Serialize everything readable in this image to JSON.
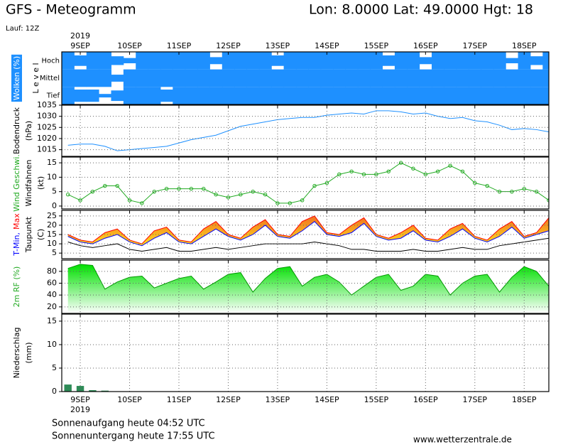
{
  "header": {
    "title": "GFS - Meteogramm",
    "location": "Lon: 8.0000 Lat: 49.0000 Hgt: 18",
    "run": "Lauf: 12Z"
  },
  "footer": {
    "sunrise": "Sonnenaufgang heute 04:52 UTC",
    "sunset": "Sonnenuntergang heute 17:55 UTC",
    "source": "www.wetterzentrale.de"
  },
  "time": {
    "year": "2019",
    "xlim": [
      -0.375,
      9.5
    ],
    "xticks": [
      {
        "value": 0,
        "label": "9SEP"
      },
      {
        "value": 1,
        "label": "10SEP"
      },
      {
        "value": 2,
        "label": "11SEP"
      },
      {
        "value": 3,
        "label": "12SEP"
      },
      {
        "value": 4,
        "label": "13SEP"
      },
      {
        "value": 5,
        "label": "14SEP"
      },
      {
        "value": 6,
        "label": "15SEP"
      },
      {
        "value": 7,
        "label": "16SEP"
      },
      {
        "value": 8,
        "label": "17SEP"
      },
      {
        "value": 9,
        "label": "18SEP"
      }
    ],
    "x": [
      -0.25,
      0,
      0.25,
      0.5,
      0.75,
      1,
      1.25,
      1.5,
      1.75,
      2,
      2.25,
      2.5,
      2.75,
      3,
      3.25,
      3.5,
      3.75,
      4,
      4.25,
      4.5,
      4.75,
      5,
      5.25,
      5.5,
      5.75,
      6,
      6.25,
      6.5,
      6.75,
      7,
      7.25,
      7.5,
      7.75,
      8,
      8.25,
      8.5,
      8.75,
      9,
      9.25,
      9.5
    ]
  },
  "chart_data": [
    {
      "type": "clouds",
      "ylabel": [
        [
          {
            "text": "Wolken (%)",
            "color": "#ffffff",
            "background": "#1e90ff"
          }
        ],
        [
          {
            "text": "L e v e l",
            "color": "#000000"
          }
        ]
      ],
      "series": [
        {
          "name": "Hoch",
          "color": "#1e90ff",
          "values": [
            100,
            60,
            100,
            100,
            50,
            30,
            100,
            100,
            100,
            100,
            100,
            100,
            40,
            100,
            100,
            100,
            100,
            60,
            100,
            100,
            100,
            100,
            100,
            100,
            100,
            100,
            60,
            100,
            100,
            40,
            100,
            100,
            100,
            100,
            100,
            100,
            30,
            100,
            50,
            100
          ]
        },
        {
          "name": "Mittel",
          "color": "#1e90ff",
          "values": [
            100,
            100,
            100,
            100,
            40,
            100,
            100,
            100,
            100,
            100,
            100,
            100,
            100,
            100,
            100,
            100,
            100,
            100,
            100,
            100,
            100,
            100,
            100,
            100,
            100,
            100,
            100,
            100,
            100,
            100,
            100,
            100,
            100,
            100,
            100,
            100,
            100,
            100,
            100,
            100
          ]
        },
        {
          "name": "Tief",
          "color": "#1e90ff",
          "values": [
            100,
            70,
            70,
            20,
            60,
            100,
            100,
            100,
            70,
            100,
            100,
            100,
            100,
            100,
            100,
            100,
            100,
            100,
            100,
            100,
            100,
            100,
            100,
            100,
            100,
            100,
            100,
            100,
            100,
            100,
            100,
            100,
            100,
            100,
            100,
            100,
            100,
            100,
            100,
            100
          ]
        }
      ]
    },
    {
      "type": "line",
      "ylabel": [
        [
          {
            "text": "Bodendruck",
            "color": "#000000"
          }
        ],
        [
          {
            "text": "(hPa)",
            "color": "#000000"
          }
        ]
      ],
      "ylim": [
        1012,
        1035
      ],
      "yticks": [
        1015,
        1020,
        1025,
        1030,
        1035
      ],
      "grid": true,
      "series": [
        {
          "color": "#1e90ff",
          "values": [
            1017,
            1017.5,
            1017.5,
            1016.5,
            1014.5,
            1015,
            1015.5,
            1016,
            1016.5,
            1018,
            1019.5,
            1020.5,
            1021.5,
            1023.5,
            1025.5,
            1026.5,
            1027.5,
            1028.5,
            1029,
            1029.5,
            1029.5,
            1030.5,
            1031,
            1031.5,
            1031,
            1032.5,
            1032.5,
            1032,
            1031,
            1031.5,
            1030,
            1029,
            1029.5,
            1028,
            1027.5,
            1026,
            1024,
            1024.5,
            1024,
            1023
          ]
        }
      ]
    },
    {
      "type": "line",
      "markers": true,
      "ylabel": [
        [
          {
            "text": "Wind Geschwi.",
            "color": "#22aa22"
          }
        ],
        [
          {
            "text": "Windfahnen",
            "color": "#000000"
          }
        ],
        [
          {
            "text": "(kt)",
            "color": "#000000"
          }
        ]
      ],
      "ylim": [
        -1,
        17
      ],
      "yticks": [
        0,
        5,
        10,
        15
      ],
      "grid": true,
      "series": [
        {
          "color": "#22aa22",
          "values": [
            4,
            2,
            5,
            7,
            7,
            2,
            1,
            5,
            6,
            6,
            6,
            6,
            4,
            3,
            4,
            5,
            4,
            1,
            1,
            2,
            7,
            8,
            11,
            12,
            11,
            11,
            12,
            15,
            13,
            11,
            12,
            14,
            12,
            8,
            7,
            5,
            5,
            6,
            5,
            2
          ]
        }
      ]
    },
    {
      "type": "band",
      "ylabel": [
        [
          {
            "text": "T-Min,",
            "color": "#0000ff"
          },
          {
            "text": "Max",
            "color": "#ff0000"
          }
        ],
        [
          {
            "text": "Taupunkt",
            "color": "#000000"
          }
        ],
        [
          {
            "text": "(C)",
            "color": "#000000"
          }
        ]
      ],
      "ylim": [
        2,
        28
      ],
      "yticks": [
        5,
        10,
        15,
        20,
        25
      ],
      "grid": true,
      "fill_between": [
        0,
        1
      ],
      "fill_colors": [
        "#f07020",
        "#ffe020"
      ],
      "series": [
        {
          "color": "#ff0000",
          "values": [
            15,
            12,
            11,
            16,
            18,
            12,
            10,
            17,
            19,
            12,
            11,
            18,
            22,
            15,
            13,
            19,
            23,
            15,
            14,
            22,
            25,
            16,
            15,
            20,
            24,
            15,
            13,
            16,
            20,
            13,
            12,
            18,
            21,
            14,
            12,
            18,
            22,
            14,
            16,
            24
          ]
        },
        {
          "color": "#0000ff",
          "values": [
            14,
            11,
            10,
            13,
            15,
            11,
            9,
            13,
            16,
            11,
            10,
            14,
            18,
            14,
            12,
            15,
            20,
            14,
            13,
            17,
            22,
            15,
            14,
            16,
            21,
            14,
            12,
            13,
            17,
            12,
            11,
            14,
            18,
            13,
            11,
            14,
            19,
            13,
            15,
            17
          ]
        },
        {
          "color": "#000000",
          "values": [
            11,
            9,
            8,
            9,
            10,
            7,
            6,
            7,
            8,
            6,
            6,
            7,
            8,
            7,
            8,
            9,
            10,
            10,
            10,
            10,
            11,
            10,
            9,
            7,
            7,
            6,
            6,
            6,
            7,
            6,
            6,
            7,
            8,
            7,
            7,
            9,
            10,
            11,
            12,
            13
          ]
        }
      ]
    },
    {
      "type": "area",
      "ylabel": [
        [
          {
            "text": "2m RF (%)",
            "color": "#22aa22"
          }
        ]
      ],
      "ylim": [
        9,
        99
      ],
      "yticks": [
        20,
        40,
        60,
        80
      ],
      "grid": true,
      "fill_colors": [
        "#00e000",
        "#ffffff"
      ],
      "series": [
        {
          "color": "#009900",
          "values": [
            85,
            92,
            90,
            50,
            62,
            70,
            72,
            52,
            60,
            68,
            72,
            50,
            62,
            75,
            78,
            45,
            68,
            85,
            88,
            55,
            70,
            75,
            62,
            40,
            55,
            70,
            75,
            48,
            55,
            75,
            72,
            40,
            60,
            72,
            75,
            45,
            70,
            88,
            80,
            55
          ]
        }
      ]
    },
    {
      "type": "bar",
      "ylabel": [
        [
          {
            "text": "Niederschlag",
            "color": "#000000"
          }
        ],
        [
          {
            "text": "(mm)",
            "color": "#000000"
          }
        ]
      ],
      "ylim": [
        0,
        16.5
      ],
      "yticks": [
        0,
        5,
        10,
        15
      ],
      "grid": true,
      "series": [
        {
          "color": "#2e8b57",
          "values": [
            1.5,
            1.2,
            0.3,
            0.2,
            0,
            0,
            0,
            0,
            0,
            0,
            0,
            0,
            0,
            0,
            0,
            0,
            0,
            0,
            0,
            0,
            0,
            0,
            0,
            0,
            0,
            0,
            0,
            0,
            0,
            0,
            0,
            0,
            0,
            0,
            0,
            0,
            0,
            0,
            0,
            0
          ]
        }
      ]
    }
  ]
}
